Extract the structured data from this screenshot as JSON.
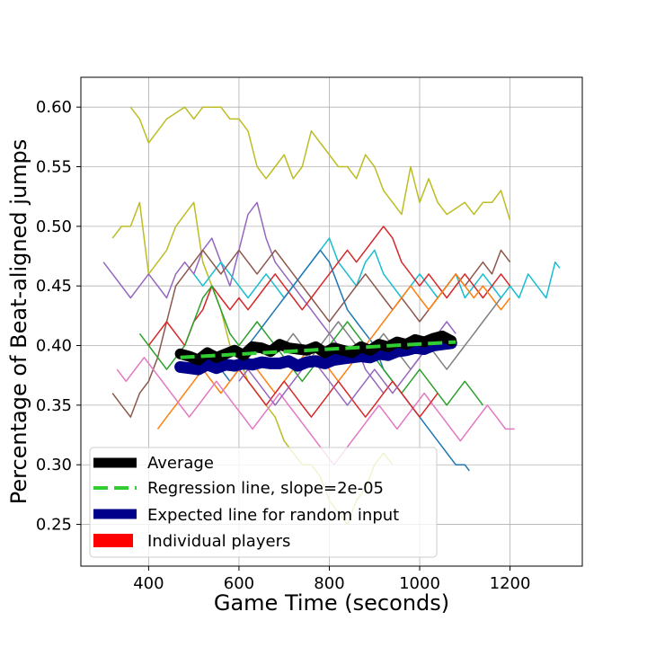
{
  "chart_data": {
    "type": "line",
    "title": "",
    "xlabel": "Game Time (seconds)",
    "ylabel": "Percentage of Beat-aligned jumps",
    "xlim": [
      250,
      1360
    ],
    "ylim": [
      0.215,
      0.625
    ],
    "xticks": [
      400,
      600,
      800,
      1000,
      1200
    ],
    "xtick_labels": [
      "400",
      "600",
      "800",
      "1000",
      "1200"
    ],
    "yticks": [
      0.25,
      0.3,
      0.35,
      0.4,
      0.45,
      0.5,
      0.55,
      0.6
    ],
    "ytick_labels": [
      "0.25",
      "0.30",
      "0.35",
      "0.40",
      "0.45",
      "0.50",
      "0.55",
      "0.60"
    ],
    "grid": true,
    "legend_position": "lower-left",
    "legend": [
      {
        "label": "Average",
        "color": "#000000",
        "style": "thick"
      },
      {
        "label": "Regression line, slope=2e-05",
        "color": "#32cd32",
        "style": "dashed"
      },
      {
        "label": "Expected line for random input",
        "color": "#00008b",
        "style": "thick"
      },
      {
        "label": "Individual players",
        "color": "#ff0000",
        "style": "patch"
      }
    ],
    "players": [
      {
        "color": "#bcbd22",
        "x": [
          360,
          380,
          400,
          420,
          440,
          460,
          480,
          500,
          520,
          540,
          560,
          580,
          600,
          620,
          640,
          660,
          680,
          700,
          720,
          740,
          760,
          780,
          800,
          820,
          840,
          860,
          880,
          900,
          920,
          940,
          960,
          980,
          1000,
          1020,
          1040,
          1060,
          1080,
          1100,
          1120,
          1140,
          1160,
          1180,
          1200
        ],
        "y": [
          0.6,
          0.59,
          0.57,
          0.58,
          0.59,
          0.595,
          0.6,
          0.59,
          0.6,
          0.6,
          0.6,
          0.59,
          0.59,
          0.58,
          0.55,
          0.54,
          0.55,
          0.56,
          0.54,
          0.55,
          0.58,
          0.57,
          0.56,
          0.55,
          0.55,
          0.54,
          0.56,
          0.55,
          0.53,
          0.52,
          0.51,
          0.55,
          0.52,
          0.54,
          0.52,
          0.51,
          0.515,
          0.52,
          0.51,
          0.52,
          0.52,
          0.53,
          0.505
        ]
      },
      {
        "color": "#bcbd22",
        "x": [
          320,
          340,
          360,
          380,
          400,
          420,
          440,
          460,
          480,
          500,
          520,
          540,
          560,
          580,
          600,
          620,
          640,
          660,
          680,
          700,
          720,
          740,
          760,
          780,
          800,
          820,
          840,
          860,
          880,
          900,
          920,
          940
        ],
        "y": [
          0.49,
          0.5,
          0.5,
          0.52,
          0.46,
          0.47,
          0.48,
          0.5,
          0.51,
          0.52,
          0.47,
          0.45,
          0.43,
          0.4,
          0.39,
          0.37,
          0.36,
          0.35,
          0.34,
          0.32,
          0.31,
          0.3,
          0.3,
          0.29,
          0.27,
          0.26,
          0.25,
          0.27,
          0.28,
          0.3,
          0.31,
          0.3
        ]
      },
      {
        "color": "#9467bd",
        "x": [
          300,
          320,
          340,
          360,
          380,
          400,
          420,
          440,
          460,
          480,
          500,
          520,
          540,
          560,
          580,
          600,
          620,
          640,
          660,
          680,
          700,
          720,
          740,
          760,
          780,
          800,
          820,
          840,
          860,
          880,
          900,
          920
        ],
        "y": [
          0.47,
          0.46,
          0.45,
          0.44,
          0.45,
          0.46,
          0.45,
          0.44,
          0.46,
          0.47,
          0.46,
          0.48,
          0.49,
          0.47,
          0.45,
          0.48,
          0.51,
          0.52,
          0.49,
          0.47,
          0.46,
          0.45,
          0.44,
          0.43,
          0.42,
          0.41,
          0.4,
          0.39,
          0.4,
          0.38,
          0.37,
          0.36
        ]
      },
      {
        "color": "#17becf",
        "x": [
          500,
          520,
          540,
          560,
          580,
          600,
          620,
          640,
          660,
          680,
          700,
          720,
          740,
          760,
          780,
          800,
          820,
          840,
          860,
          880,
          900,
          920,
          940,
          960,
          980,
          1000,
          1020,
          1040,
          1060,
          1080,
          1100,
          1120,
          1140,
          1160,
          1180,
          1200,
          1220,
          1240,
          1260,
          1280,
          1300,
          1310
        ],
        "y": [
          0.46,
          0.45,
          0.46,
          0.47,
          0.46,
          0.45,
          0.44,
          0.45,
          0.46,
          0.45,
          0.44,
          0.45,
          0.46,
          0.47,
          0.48,
          0.49,
          0.47,
          0.46,
          0.45,
          0.47,
          0.48,
          0.46,
          0.45,
          0.44,
          0.45,
          0.46,
          0.45,
          0.44,
          0.45,
          0.46,
          0.44,
          0.45,
          0.46,
          0.45,
          0.44,
          0.45,
          0.44,
          0.46,
          0.45,
          0.44,
          0.47,
          0.465
        ]
      },
      {
        "color": "#8c564b",
        "x": [
          320,
          340,
          360,
          380,
          400,
          420,
          440,
          460,
          480,
          500,
          520,
          540,
          560,
          580,
          600,
          620,
          640,
          660,
          680,
          700,
          720,
          740,
          760,
          780,
          800,
          820,
          840,
          860,
          880,
          900,
          920,
          940,
          960,
          980,
          1000,
          1020,
          1040,
          1060,
          1080,
          1100,
          1120,
          1140,
          1160,
          1180,
          1200
        ],
        "y": [
          0.36,
          0.35,
          0.34,
          0.36,
          0.37,
          0.39,
          0.42,
          0.45,
          0.46,
          0.47,
          0.48,
          0.47,
          0.46,
          0.47,
          0.48,
          0.47,
          0.46,
          0.47,
          0.48,
          0.47,
          0.46,
          0.45,
          0.44,
          0.43,
          0.42,
          0.43,
          0.44,
          0.45,
          0.46,
          0.45,
          0.44,
          0.43,
          0.44,
          0.43,
          0.42,
          0.43,
          0.44,
          0.45,
          0.46,
          0.45,
          0.46,
          0.47,
          0.46,
          0.48,
          0.47
        ]
      },
      {
        "color": "#d62728",
        "x": [
          400,
          420,
          440,
          460,
          480,
          500,
          520,
          540,
          560,
          580,
          600,
          620,
          640,
          660,
          680,
          700,
          720,
          740,
          760,
          780,
          800,
          820,
          840,
          860,
          880,
          900,
          920,
          940,
          960,
          980,
          1000,
          1020,
          1040,
          1060,
          1080,
          1100,
          1120,
          1140,
          1160,
          1180,
          1200
        ],
        "y": [
          0.4,
          0.41,
          0.42,
          0.41,
          0.4,
          0.42,
          0.43,
          0.45,
          0.44,
          0.43,
          0.44,
          0.43,
          0.44,
          0.45,
          0.46,
          0.45,
          0.44,
          0.43,
          0.44,
          0.45,
          0.46,
          0.47,
          0.48,
          0.47,
          0.48,
          0.49,
          0.5,
          0.49,
          0.47,
          0.46,
          0.45,
          0.46,
          0.45,
          0.44,
          0.45,
          0.46,
          0.45,
          0.44,
          0.45,
          0.46,
          0.45
        ]
      },
      {
        "color": "#1f77b4",
        "x": [
          560,
          580,
          600,
          620,
          640,
          660,
          680,
          700,
          720,
          740,
          760,
          780,
          800,
          820,
          840,
          860,
          880,
          900,
          920,
          940,
          960,
          980,
          1000,
          1020,
          1040,
          1060,
          1080,
          1100,
          1110
        ],
        "y": [
          0.38,
          0.37,
          0.38,
          0.4,
          0.41,
          0.42,
          0.43,
          0.44,
          0.45,
          0.46,
          0.47,
          0.48,
          0.47,
          0.45,
          0.43,
          0.42,
          0.41,
          0.4,
          0.38,
          0.37,
          0.36,
          0.35,
          0.34,
          0.33,
          0.32,
          0.31,
          0.3,
          0.3,
          0.295
        ]
      },
      {
        "color": "#2ca02c",
        "x": [
          380,
          400,
          420,
          440,
          460,
          480,
          500,
          520,
          540,
          560,
          580,
          600,
          620,
          640,
          660,
          680,
          700,
          720,
          740,
          760,
          780,
          800,
          820,
          840,
          860,
          880,
          900,
          920,
          940,
          960,
          980,
          1000,
          1020,
          1040,
          1060,
          1080,
          1100,
          1120,
          1140
        ],
        "y": [
          0.41,
          0.4,
          0.39,
          0.38,
          0.39,
          0.4,
          0.42,
          0.44,
          0.45,
          0.43,
          0.41,
          0.4,
          0.41,
          0.42,
          0.41,
          0.4,
          0.39,
          0.38,
          0.37,
          0.38,
          0.39,
          0.4,
          0.41,
          0.42,
          0.41,
          0.4,
          0.39,
          0.38,
          0.37,
          0.36,
          0.37,
          0.38,
          0.37,
          0.36,
          0.35,
          0.36,
          0.37,
          0.36,
          0.35
        ]
      },
      {
        "color": "#ff7f0e",
        "x": [
          420,
          440,
          460,
          480,
          500,
          520,
          540,
          560,
          580,
          600,
          620,
          640,
          660,
          680,
          700,
          720,
          740,
          760,
          780,
          800,
          820,
          840,
          860,
          880,
          900,
          920,
          940,
          960,
          980,
          1000,
          1020,
          1040,
          1060,
          1080,
          1100,
          1120,
          1140,
          1160,
          1180,
          1200
        ],
        "y": [
          0.33,
          0.34,
          0.35,
          0.36,
          0.37,
          0.38,
          0.37,
          0.36,
          0.37,
          0.38,
          0.39,
          0.38,
          0.37,
          0.36,
          0.37,
          0.38,
          0.39,
          0.4,
          0.39,
          0.38,
          0.37,
          0.38,
          0.39,
          0.4,
          0.41,
          0.42,
          0.43,
          0.44,
          0.45,
          0.44,
          0.43,
          0.44,
          0.45,
          0.46,
          0.45,
          0.44,
          0.45,
          0.44,
          0.43,
          0.44
        ]
      },
      {
        "color": "#e377c2",
        "x": [
          330,
          350,
          370,
          390,
          410,
          430,
          450,
          470,
          490,
          510,
          530,
          550,
          570,
          590,
          610,
          630,
          650,
          670,
          690,
          710,
          730,
          750,
          770,
          790,
          810,
          830,
          850,
          870,
          890,
          910,
          930,
          950,
          970,
          990,
          1010,
          1030,
          1050,
          1070,
          1090,
          1110,
          1130,
          1150,
          1170,
          1190,
          1210
        ],
        "y": [
          0.38,
          0.37,
          0.38,
          0.39,
          0.38,
          0.37,
          0.36,
          0.35,
          0.34,
          0.35,
          0.36,
          0.37,
          0.36,
          0.35,
          0.34,
          0.33,
          0.34,
          0.35,
          0.36,
          0.35,
          0.34,
          0.33,
          0.32,
          0.31,
          0.3,
          0.31,
          0.32,
          0.33,
          0.34,
          0.35,
          0.34,
          0.33,
          0.34,
          0.35,
          0.36,
          0.35,
          0.34,
          0.33,
          0.32,
          0.33,
          0.34,
          0.35,
          0.34,
          0.33,
          0.33
        ]
      },
      {
        "color": "#7f7f7f",
        "x": [
          700,
          720,
          740,
          760,
          780,
          800,
          820,
          840,
          860,
          880,
          900,
          920,
          940,
          960,
          980,
          1000,
          1020,
          1040,
          1060,
          1080,
          1100,
          1120,
          1140,
          1160,
          1180
        ],
        "y": [
          0.4,
          0.41,
          0.4,
          0.39,
          0.4,
          0.41,
          0.42,
          0.41,
          0.4,
          0.39,
          0.4,
          0.41,
          0.4,
          0.39,
          0.38,
          0.39,
          0.4,
          0.39,
          0.38,
          0.39,
          0.4,
          0.41,
          0.42,
          0.43,
          0.44
        ]
      },
      {
        "color": "#d62728",
        "x": [
          600,
          620,
          640,
          660,
          680,
          700,
          720,
          740,
          760,
          780,
          800,
          820,
          840,
          860,
          880,
          900,
          920,
          940,
          960,
          980,
          1000,
          1020,
          1040
        ],
        "y": [
          0.38,
          0.37,
          0.36,
          0.35,
          0.36,
          0.37,
          0.36,
          0.35,
          0.34,
          0.35,
          0.36,
          0.37,
          0.36,
          0.35,
          0.34,
          0.35,
          0.36,
          0.37,
          0.36,
          0.35,
          0.34,
          0.35,
          0.36
        ]
      },
      {
        "color": "#9467bd",
        "x": [
          600,
          620,
          640,
          660,
          680,
          700,
          720,
          740,
          760,
          780,
          800,
          820,
          840,
          860,
          880,
          900,
          920,
          940,
          960,
          980,
          1000,
          1020,
          1040,
          1060,
          1080
        ],
        "y": [
          0.37,
          0.38,
          0.37,
          0.36,
          0.35,
          0.36,
          0.37,
          0.38,
          0.39,
          0.38,
          0.37,
          0.36,
          0.35,
          0.36,
          0.37,
          0.38,
          0.37,
          0.36,
          0.37,
          0.38,
          0.39,
          0.4,
          0.41,
          0.42,
          0.41
        ]
      }
    ],
    "average": {
      "x": [
        470,
        490,
        510,
        530,
        550,
        570,
        590,
        610,
        630,
        650,
        670,
        690,
        710,
        730,
        750,
        770,
        790,
        810,
        830,
        850,
        870,
        890,
        910,
        930,
        950,
        970,
        990,
        1010,
        1030,
        1050,
        1070
      ],
      "y": [
        0.393,
        0.391,
        0.388,
        0.394,
        0.39,
        0.393,
        0.396,
        0.392,
        0.399,
        0.398,
        0.395,
        0.401,
        0.398,
        0.397,
        0.396,
        0.399,
        0.394,
        0.398,
        0.396,
        0.394,
        0.399,
        0.396,
        0.401,
        0.399,
        0.403,
        0.401,
        0.405,
        0.403,
        0.406,
        0.408,
        0.404
      ]
    },
    "regression": {
      "x": [
        470,
        1080
      ],
      "y": [
        0.39,
        0.403
      ],
      "slope": "2e-05"
    },
    "expected": {
      "x": [
        470,
        490,
        510,
        530,
        550,
        570,
        590,
        610,
        630,
        650,
        670,
        690,
        710,
        730,
        750,
        770,
        790,
        810,
        830,
        850,
        870,
        890,
        910,
        930,
        950,
        970,
        990,
        1010,
        1030,
        1050,
        1070
      ],
      "y": [
        0.382,
        0.381,
        0.38,
        0.384,
        0.381,
        0.384,
        0.383,
        0.385,
        0.384,
        0.386,
        0.385,
        0.385,
        0.387,
        0.383,
        0.386,
        0.387,
        0.385,
        0.388,
        0.389,
        0.39,
        0.391,
        0.39,
        0.393,
        0.392,
        0.395,
        0.396,
        0.398,
        0.397,
        0.4,
        0.401,
        0.402
      ]
    }
  }
}
